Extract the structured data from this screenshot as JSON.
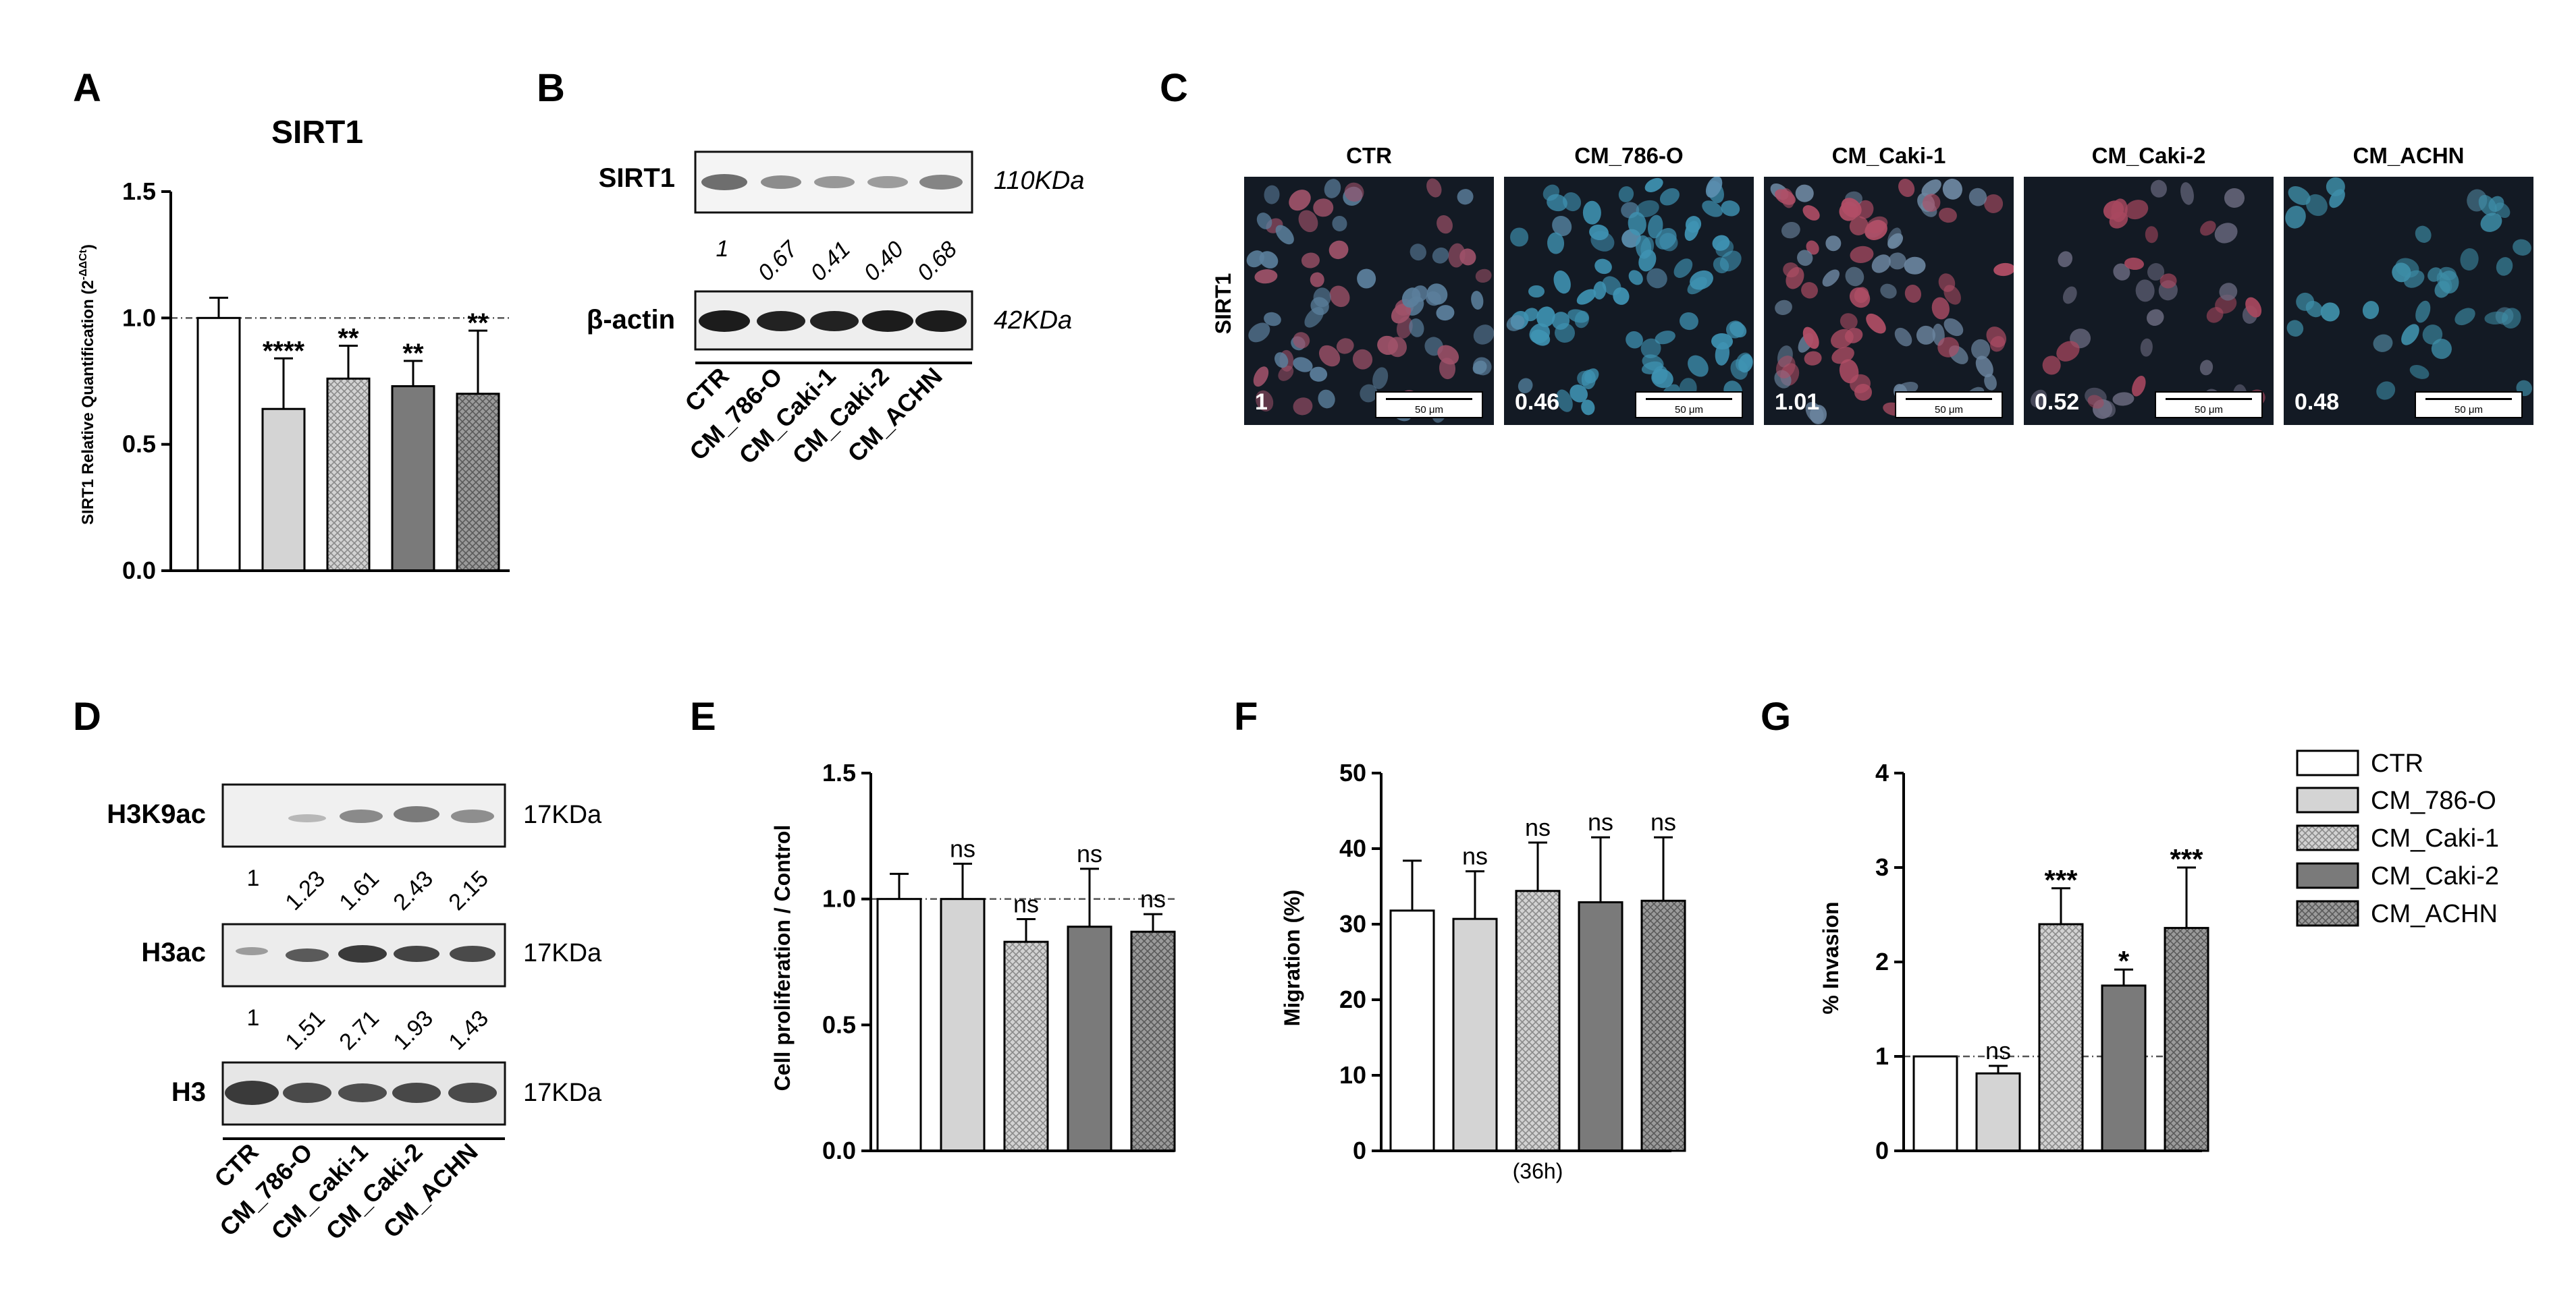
{
  "colors": {
    "ctr": "#ffffff",
    "cm_786o": "#d4d4d4",
    "cm_caki1": "#c8c8c8",
    "cm_caki2": "#7a7a7a",
    "cm_achn": "#8f8f8f",
    "ink": "#000000"
  },
  "legend": {
    "items": [
      "CTR",
      "CM_786-O",
      "CM_Caki-1",
      "CM_Caki-2",
      "CM_ACHN"
    ]
  },
  "panels": {
    "A": {
      "letter": "A",
      "title": "SIRT1",
      "ylabel_main": "SIRT1 Relative Quantification (2",
      "ylabel_sup": "-ΔΔCt",
      "ylabel_end": ")",
      "ticks": [
        "0.0",
        "0.5",
        "1.0",
        "1.5"
      ]
    },
    "B": {
      "letter": "B",
      "rows": [
        {
          "label": "SIRT1",
          "kda": "110KDa"
        },
        {
          "label": "β-actin",
          "kda": "42KDa"
        }
      ],
      "values": [
        "1",
        "0.67",
        "0.41",
        "0.40",
        "0.68"
      ],
      "lanes": [
        "CTR",
        "CM_786-O",
        "CM_Caki-1",
        "CM_Caki-2",
        "CM_ACHN"
      ]
    },
    "C": {
      "letter": "C",
      "row_label": "SIRT1",
      "scale_label": "50 μm",
      "images": [
        {
          "title": "CTR",
          "value": "1"
        },
        {
          "title": "CM_786-O",
          "value": "0.46"
        },
        {
          "title": "CM_Caki-1",
          "value": "1.01"
        },
        {
          "title": "CM_Caki-2",
          "value": "0.52"
        },
        {
          "title": "CM_ACHN",
          "value": "0.48"
        }
      ]
    },
    "D": {
      "letter": "D",
      "rows": [
        {
          "label": "H3K9ac",
          "kda": "17KDa",
          "values": [
            "1",
            "1.23",
            "1.61",
            "2.43",
            "2.15"
          ]
        },
        {
          "label": "H3ac",
          "kda": "17KDa",
          "values": [
            "1",
            "1.51",
            "2.71",
            "1.93",
            "1.43"
          ]
        },
        {
          "label": "H3",
          "kda": "17KDa",
          "values": []
        }
      ],
      "lanes": [
        "CTR",
        "CM_786-O",
        "CM_Caki-1",
        "CM_Caki-2",
        "CM_ACHN"
      ]
    },
    "E": {
      "letter": "E",
      "ylabel": "Cell proliferation / Control",
      "ticks": [
        "0.0",
        "0.5",
        "1.0",
        "1.5"
      ]
    },
    "F": {
      "letter": "F",
      "ylabel": "Migration (%)",
      "xlabel": "(36h)",
      "ticks": [
        "0",
        "10",
        "20",
        "30",
        "40",
        "50"
      ]
    },
    "G": {
      "letter": "G",
      "ylabel": "% Invasion",
      "ticks": [
        "0",
        "1",
        "2",
        "3",
        "4"
      ]
    }
  },
  "chart_data": [
    {
      "id": "A",
      "type": "bar",
      "title": "SIRT1",
      "categories": [
        "CTR",
        "CM_786-O",
        "CM_Caki-1",
        "CM_Caki-2",
        "CM_ACHN"
      ],
      "values": [
        1.0,
        0.64,
        0.76,
        0.73,
        0.7
      ],
      "errors": [
        0.08,
        0.2,
        0.13,
        0.1,
        0.25
      ],
      "annotations": [
        "",
        "****",
        "**",
        "**",
        "**"
      ],
      "ylim": [
        0,
        1.5
      ],
      "reference_line": 1.0
    },
    {
      "id": "E",
      "type": "bar",
      "categories": [
        "CTR",
        "CM_786-O",
        "CM_Caki-1",
        "CM_Caki-2",
        "CM_ACHN"
      ],
      "values": [
        1.0,
        1.0,
        0.83,
        0.89,
        0.87
      ],
      "errors": [
        0.1,
        0.14,
        0.09,
        0.23,
        0.07
      ],
      "annotations": [
        "",
        "ns",
        "ns",
        "ns",
        "ns"
      ],
      "ylabel": "Cell proliferation / Control",
      "ylim": [
        0,
        1.5
      ],
      "reference_line": 1.0
    },
    {
      "id": "F",
      "type": "bar",
      "categories": [
        "CTR",
        "CM_786-O",
        "CM_Caki-1",
        "CM_Caki-2",
        "CM_ACHN"
      ],
      "values": [
        31.8,
        30.7,
        34.4,
        32.9,
        33.1
      ],
      "errors": [
        6.6,
        6.3,
        6.4,
        8.6,
        8.4
      ],
      "annotations": [
        "",
        "ns",
        "ns",
        "ns",
        "ns"
      ],
      "ylabel": "Migration (%)",
      "xlabel": "(36h)",
      "ylim": [
        0,
        50
      ]
    },
    {
      "id": "G",
      "type": "bar",
      "categories": [
        "CTR",
        "CM_786-O",
        "CM_Caki-1",
        "CM_Caki-2",
        "CM_ACHN"
      ],
      "values": [
        1.0,
        0.82,
        2.4,
        1.75,
        2.36
      ],
      "errors": [
        0.0,
        0.08,
        0.38,
        0.17,
        0.64
      ],
      "annotations": [
        "",
        "ns",
        "***",
        "*",
        "***"
      ],
      "ylabel": "% Invasion",
      "ylim": [
        0,
        4
      ],
      "reference_line": 1.0,
      "legend_position": "right"
    }
  ]
}
